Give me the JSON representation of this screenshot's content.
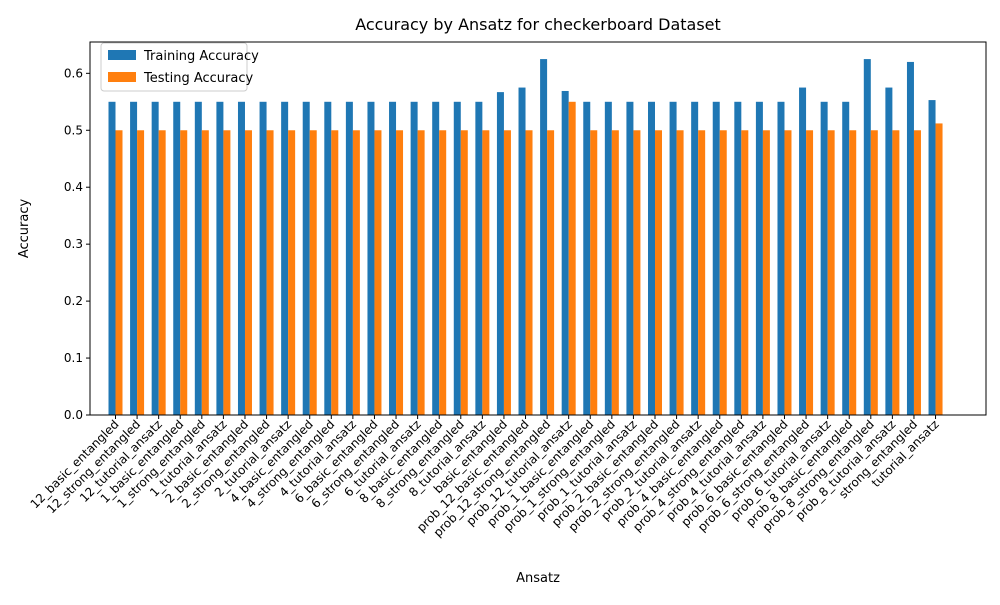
{
  "chart_data": {
    "type": "bar",
    "title": "Accuracy by Ansatz for checkerboard Dataset",
    "xlabel": "Ansatz",
    "ylabel": "Accuracy",
    "ylim": [
      0,
      0.655
    ],
    "yticks": [
      "0.0",
      "0.1",
      "0.2",
      "0.3",
      "0.4",
      "0.5",
      "0.6"
    ],
    "legend_position": "top-left",
    "grid": false,
    "categories": [
      "12_basic_entangled",
      "12_strong_entangled",
      "12_tutorial_ansatz",
      "1_basic_entangled",
      "1_strong_entangled",
      "1_tutorial_ansatz",
      "2_basic_entangled",
      "2_strong_entangled",
      "2_tutorial_ansatz",
      "4_basic_entangled",
      "4_strong_entangled",
      "4_tutorial_ansatz",
      "6_basic_entangled",
      "6_strong_entangled",
      "6_tutorial_ansatz",
      "8_basic_entangled",
      "8_strong_entangled",
      "8_tutorial_ansatz",
      "basic_entangled",
      "prob_12_basic_entangled",
      "prob_12_strong_entangled",
      "prob_12_tutorial_ansatz",
      "prob_1_basic_entangled",
      "prob_1_strong_entangled",
      "prob_1_tutorial_ansatz",
      "prob_2_basic_entangled",
      "prob_2_strong_entangled",
      "prob_2_tutorial_ansatz",
      "prob_4_basic_entangled",
      "prob_4_strong_entangled",
      "prob_4_tutorial_ansatz",
      "prob_6_basic_entangled",
      "prob_6_strong_entangled",
      "prob_6_tutorial_ansatz",
      "prob_8_basic_entangled",
      "prob_8_strong_entangled",
      "prob_8_tutorial_ansatz",
      "strong_entangled",
      "tutorial_ansatz"
    ],
    "series": [
      {
        "name": "Training Accuracy",
        "color": "#1f77b4",
        "values": [
          0.55,
          0.55,
          0.55,
          0.55,
          0.55,
          0.55,
          0.55,
          0.55,
          0.55,
          0.55,
          0.55,
          0.55,
          0.55,
          0.55,
          0.55,
          0.55,
          0.55,
          0.55,
          0.567,
          0.575,
          0.625,
          0.569,
          0.55,
          0.55,
          0.55,
          0.55,
          0.55,
          0.55,
          0.55,
          0.55,
          0.55,
          0.55,
          0.575,
          0.55,
          0.55,
          0.625,
          0.575,
          0.62,
          0.553
        ]
      },
      {
        "name": "Testing Accuracy",
        "color": "#ff7f0e",
        "values": [
          0.5,
          0.5,
          0.5,
          0.5,
          0.5,
          0.5,
          0.5,
          0.5,
          0.5,
          0.5,
          0.5,
          0.5,
          0.5,
          0.5,
          0.5,
          0.5,
          0.5,
          0.5,
          0.5,
          0.5,
          0.5,
          0.55,
          0.5,
          0.5,
          0.5,
          0.5,
          0.5,
          0.5,
          0.5,
          0.5,
          0.5,
          0.5,
          0.5,
          0.5,
          0.5,
          0.5,
          0.5,
          0.5,
          0.512
        ]
      }
    ]
  }
}
